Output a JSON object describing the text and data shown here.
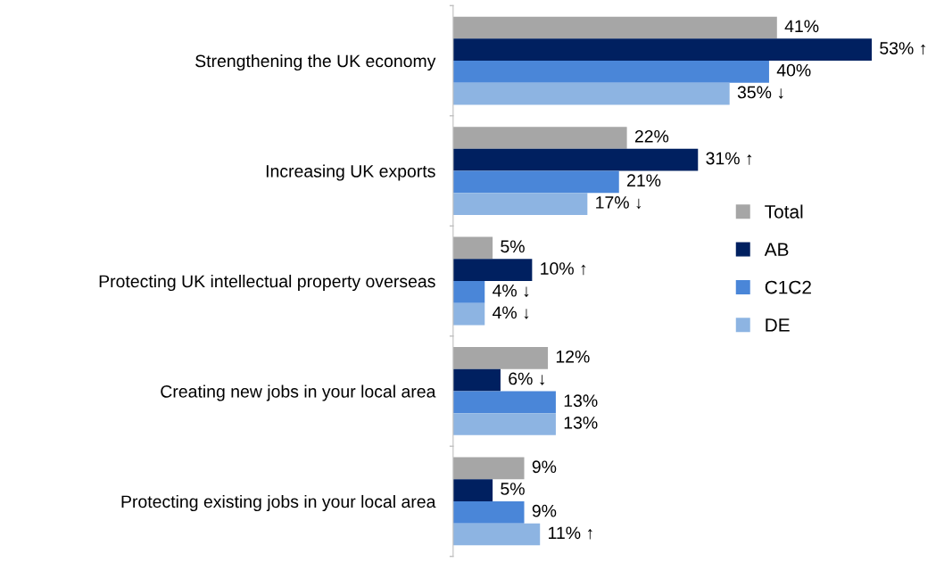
{
  "chart_data": {
    "type": "bar",
    "orientation": "horizontal",
    "tick_labels": "y",
    "grid": false,
    "legend": "right",
    "categories": [
      "Strengthening the UK economy",
      "Increasing UK exports",
      "Protecting UK intellectual property overseas",
      "Creating new jobs in your local area",
      "Protecting existing jobs in your local area"
    ],
    "series": [
      {
        "name": "Total",
        "color": "#a6a6a6",
        "values": [
          41,
          22,
          5,
          12,
          9
        ],
        "value_labels": [
          "41%",
          "22%",
          "5%",
          "12%",
          "9%"
        ]
      },
      {
        "name": "AB",
        "color": "#002060",
        "values": [
          53,
          31,
          10,
          6,
          5
        ],
        "value_labels": [
          "53% ↑",
          "31% ↑",
          "10% ↑",
          "6% ↓",
          "5%"
        ]
      },
      {
        "name": "C1C2",
        "color": "#4a86d8",
        "values": [
          40,
          21,
          4,
          13,
          9
        ],
        "value_labels": [
          "40%",
          "21%",
          "4% ↓",
          "13%",
          "9%"
        ]
      },
      {
        "name": "DE",
        "color": "#8db4e2",
        "values": [
          35,
          17,
          4,
          13,
          11
        ],
        "value_labels": [
          "35% ↓",
          "17% ↓",
          "4% ↓",
          "13%",
          "11% ↑"
        ]
      }
    ]
  }
}
